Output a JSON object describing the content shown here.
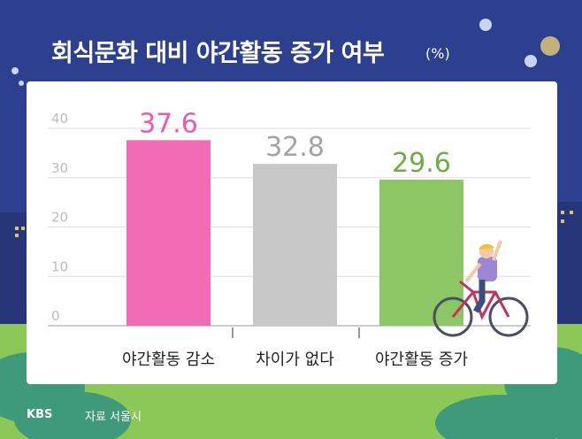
{
  "title": "회식문화 대비 야간활동 증가 여부",
  "unit": "(%)",
  "footer": {
    "brand": "KBS",
    "source": "자료 서울시"
  },
  "colors": {
    "background": "#2d3f8f",
    "grass": "#8cc857",
    "tree": "#3e9a7a",
    "grid": "#dddddd",
    "axis_text": "#bcbcbc"
  },
  "chart_data": {
    "type": "bar",
    "title": "회식문화 대비 야간활동 증가 여부",
    "ylabel": "(%)",
    "xlabel": "",
    "ylim": [
      0,
      40
    ],
    "yticks": [
      0,
      10,
      20,
      30,
      40
    ],
    "grid": true,
    "categories": [
      "야간활동 감소",
      "차이가 없다",
      "야간활동 증가"
    ],
    "values": [
      37.6,
      32.8,
      29.6
    ],
    "labels": [
      "37.6",
      "32.8",
      "29.6"
    ],
    "bar_colors": [
      "#f26bb5",
      "#c8c8c8",
      "#8cc764"
    ],
    "label_colors": [
      "#ee5aa9",
      "#a3a3a3",
      "#6cae45"
    ]
  }
}
